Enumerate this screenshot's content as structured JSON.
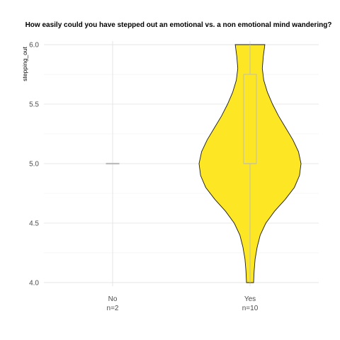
{
  "chart_data": {
    "type": "violin",
    "title": "How easily could you have stepped out an emotional vs. a non emotional mind wandering?",
    "xlabel": "",
    "ylabel": "stepping_out",
    "ylim": [
      3.97,
      6.03
    ],
    "yticks": [
      4.0,
      4.5,
      5.0,
      5.5,
      6.0
    ],
    "ytick_labels": [
      "4.0",
      "4.5",
      "5.0",
      "5.5",
      "6.0"
    ],
    "grid": true,
    "fill_color": "#fde725",
    "outline_color": "#1a1a1a",
    "box_color": "#bdbdbd",
    "categories": [
      {
        "label": "No",
        "n_label": "n=2",
        "n": 2,
        "box": {
          "min": 5.0,
          "q1": 5.0,
          "median": 5.0,
          "q3": 5.0,
          "max": 5.0
        },
        "violin": []
      },
      {
        "label": "Yes",
        "n_label": "n=10",
        "n": 10,
        "box": {
          "min": 4.0,
          "q1": 5.0,
          "median": 5.0,
          "q3": 5.75,
          "max": 6.0
        },
        "violin": [
          {
            "y": 4.0,
            "w": 0.07
          },
          {
            "y": 4.1,
            "w": 0.08
          },
          {
            "y": 4.2,
            "w": 0.1
          },
          {
            "y": 4.3,
            "w": 0.14
          },
          {
            "y": 4.4,
            "w": 0.2
          },
          {
            "y": 4.5,
            "w": 0.31
          },
          {
            "y": 4.6,
            "w": 0.48
          },
          {
            "y": 4.7,
            "w": 0.69
          },
          {
            "y": 4.8,
            "w": 0.87
          },
          {
            "y": 4.9,
            "w": 0.97
          },
          {
            "y": 5.0,
            "w": 1.0
          },
          {
            "y": 5.1,
            "w": 0.95
          },
          {
            "y": 5.2,
            "w": 0.84
          },
          {
            "y": 5.3,
            "w": 0.7
          },
          {
            "y": 5.4,
            "w": 0.56
          },
          {
            "y": 5.5,
            "w": 0.44
          },
          {
            "y": 5.6,
            "w": 0.34
          },
          {
            "y": 5.7,
            "w": 0.27
          },
          {
            "y": 5.8,
            "w": 0.24
          },
          {
            "y": 5.9,
            "w": 0.26
          },
          {
            "y": 6.0,
            "w": 0.29
          }
        ]
      }
    ]
  }
}
